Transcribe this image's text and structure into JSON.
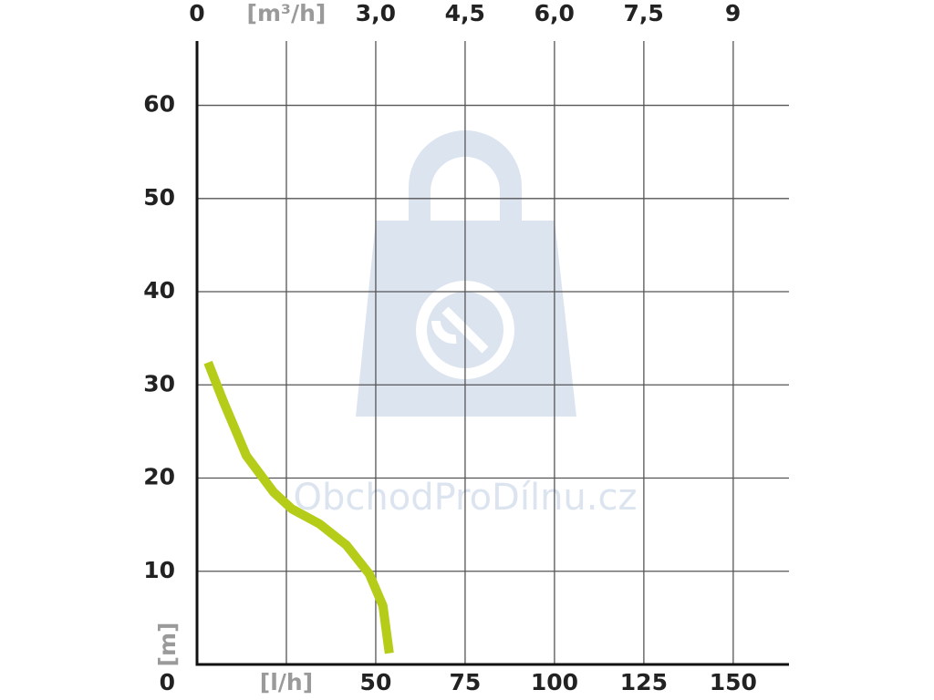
{
  "chart_data": {
    "type": "line",
    "x": [
      3.1,
      7.4,
      13.8,
      21.4,
      26.5,
      34.2,
      41.8,
      48.2,
      52.0,
      53.8
    ],
    "values": [
      32.4,
      28.2,
      22.4,
      18.5,
      16.7,
      15.1,
      12.8,
      9.7,
      6.3,
      1.2
    ],
    "color": "#b5cc18",
    "xlim": [
      0,
      165.6
    ],
    "xticks": [
      {
        "value": 25,
        "label": "[l/h]"
      },
      50,
      75,
      100,
      125,
      150
    ],
    "x2lim": [
      0,
      9.94
    ],
    "x2ticks": [
      0,
      {
        "value": 1.5,
        "label": "[m³/h]"
      },
      {
        "value": 3,
        "label": "3,0"
      },
      {
        "value": 4.5,
        "label": "4,5"
      },
      {
        "value": 6,
        "label": "6,0"
      },
      {
        "value": 7.5,
        "label": "7,5"
      },
      9
    ],
    "ylim": [
      0,
      66.9
    ],
    "yticks": [
      0,
      10,
      20,
      30,
      40,
      50,
      60
    ],
    "ylabel": "[m]",
    "watermark": "ObchodProDílnu.cz",
    "grid": true
  }
}
